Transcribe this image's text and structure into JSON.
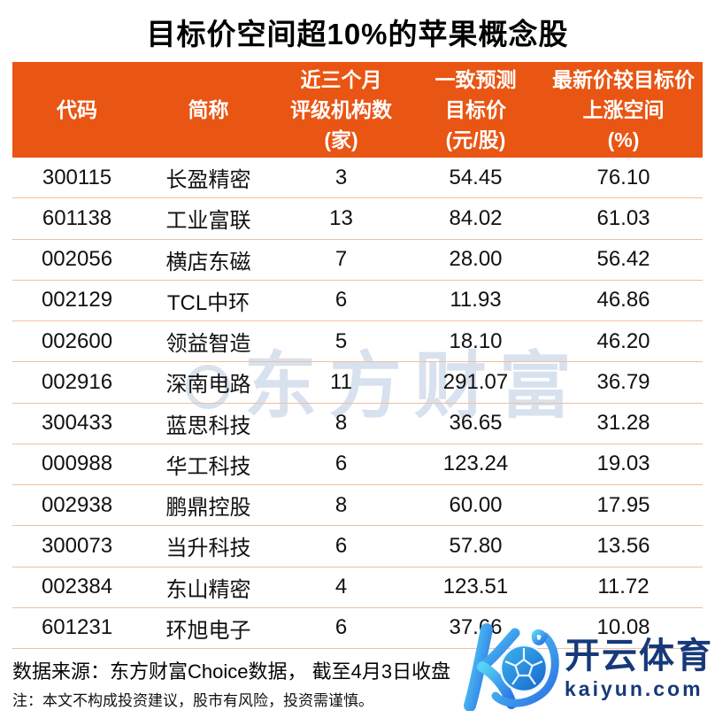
{
  "title": "目标价空间超10%的苹果概念股",
  "colors": {
    "header_bg": "#E95513",
    "row_divider": "#F2BF9B",
    "logo_navy": "#16397A",
    "logo_cyan": "#45C2F1",
    "logo_blue": "#2A6FE3",
    "watermark": "#B1C3DD"
  },
  "table": {
    "headers": [
      {
        "lines": [
          "代码"
        ]
      },
      {
        "lines": [
          "简称"
        ]
      },
      {
        "lines": [
          "近三个月",
          "评级机构数",
          "(家)"
        ]
      },
      {
        "lines": [
          "一致预测",
          "目标价",
          "(元/股)"
        ]
      },
      {
        "lines": [
          "最新价较目标价",
          "上涨空间",
          "(%)"
        ]
      }
    ]
  },
  "chart_data": {
    "type": "table",
    "title": "目标价空间超10%的苹果概念股",
    "columns": [
      "代码",
      "简称",
      "近三个月评级机构数(家)",
      "一致预测目标价(元/股)",
      "最新价较目标价上涨空间(%)"
    ],
    "rows": [
      {
        "code": "300115",
        "name": "长盈精密",
        "agencies": "3",
        "target": "54.45",
        "upside": "76.10"
      },
      {
        "code": "601138",
        "name": "工业富联",
        "agencies": "13",
        "target": "84.02",
        "upside": "61.03"
      },
      {
        "code": "002056",
        "name": "横店东磁",
        "agencies": "7",
        "target": "28.00",
        "upside": "56.42"
      },
      {
        "code": "002129",
        "name": "TCL中环",
        "agencies": "6",
        "target": "11.93",
        "upside": "46.86"
      },
      {
        "code": "002600",
        "name": "领益智造",
        "agencies": "5",
        "target": "18.10",
        "upside": "46.20"
      },
      {
        "code": "002916",
        "name": "深南电路",
        "agencies": "11",
        "target": "291.07",
        "upside": "36.79"
      },
      {
        "code": "300433",
        "name": "蓝思科技",
        "agencies": "8",
        "target": "36.65",
        "upside": "31.28"
      },
      {
        "code": "000988",
        "name": "华工科技",
        "agencies": "6",
        "target": "123.24",
        "upside": "19.03"
      },
      {
        "code": "002938",
        "name": "鹏鼎控股",
        "agencies": "8",
        "target": "60.00",
        "upside": "17.95"
      },
      {
        "code": "300073",
        "name": "当升科技",
        "agencies": "6",
        "target": "57.80",
        "upside": "13.56"
      },
      {
        "code": "002384",
        "name": "东山精密",
        "agencies": "4",
        "target": "123.51",
        "upside": "11.72"
      },
      {
        "code": "601231",
        "name": "环旭电子",
        "agencies": "6",
        "target": "37.66",
        "upside": "10.08"
      }
    ]
  },
  "watermark": {
    "text": "东方财富"
  },
  "footer": {
    "source": "数据来源：东方财富Choice数据， 截至4月3日收盘",
    "note": "注：本文不构成投资建议，股市有风险，投资需谨慎。"
  },
  "logo": {
    "brand": "开云体育",
    "domain": "kaiyun.com"
  }
}
